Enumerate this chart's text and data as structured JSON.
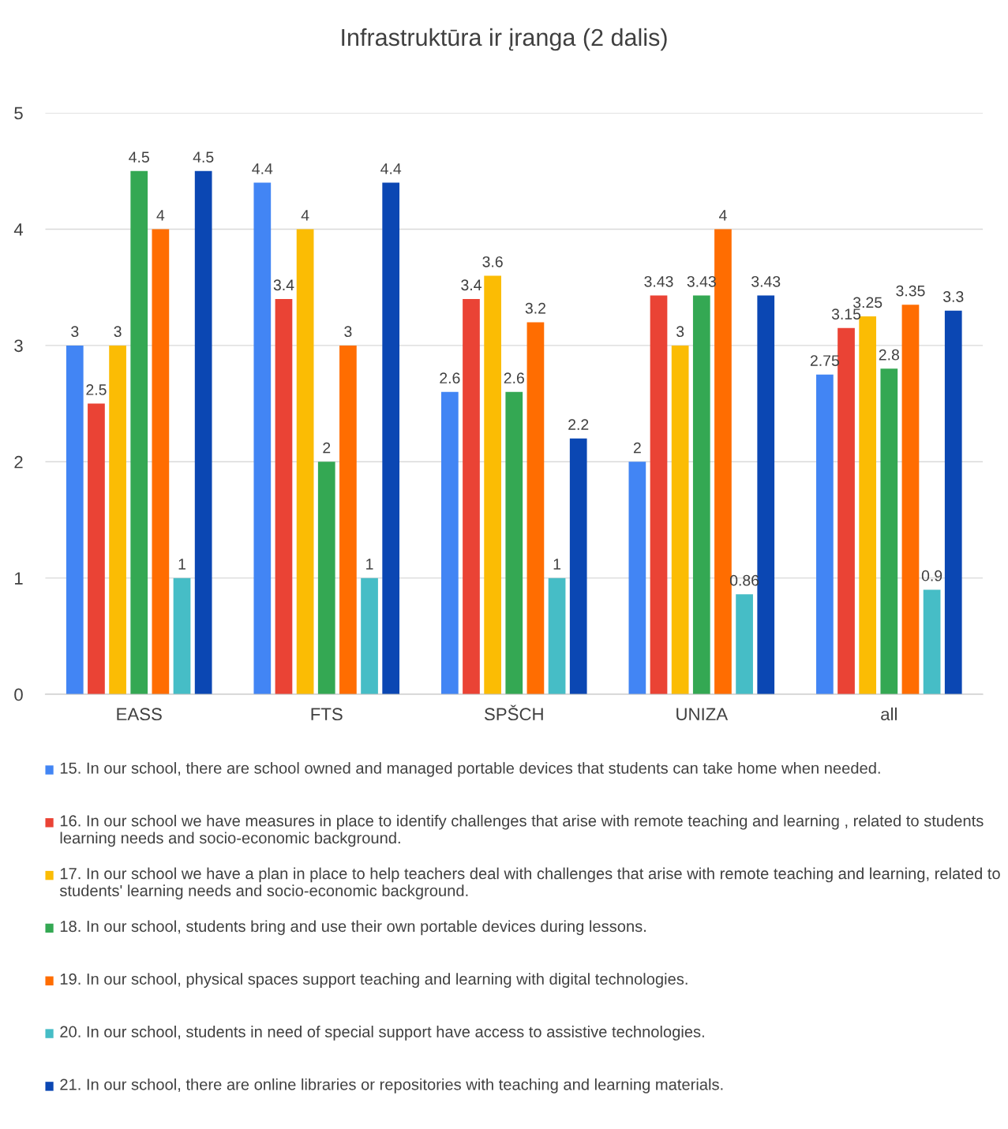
{
  "chart_data": {
    "type": "bar",
    "title": "Infrastruktūra ir įranga (2 dalis)",
    "categories": [
      "EASS",
      "FTS",
      "SPŠCH",
      "UNIZA",
      "all"
    ],
    "series": [
      {
        "name": "15. In our school, there are school owned and managed portable devices that students can take home when needed.",
        "color": "#4285f4",
        "values": [
          3,
          4.4,
          2.6,
          2,
          2.75
        ]
      },
      {
        "name": "16. In our school we have measures in place to identify challenges that arise with remote teaching and learning , related to students learning needs and socio-economic background.",
        "color": "#ea4335",
        "values": [
          2.5,
          3.4,
          3.4,
          3.43,
          3.15
        ]
      },
      {
        "name": "17. In our school we have a plan in place to help teachers deal with challenges that arise with remote teaching and learning, related to students' learning needs and socio-economic background.",
        "color": "#fbbc04",
        "values": [
          3,
          4,
          3.6,
          3,
          3.25
        ]
      },
      {
        "name": "18. In our school, students bring and use their own portable devices during lessons.",
        "color": "#34a853",
        "values": [
          4.5,
          2,
          2.6,
          3.43,
          2.8
        ]
      },
      {
        "name": "19. In our school, physical spaces support teaching and learning with digital technologies.",
        "color": "#ff6d01",
        "values": [
          4,
          3,
          3.2,
          4,
          3.35
        ]
      },
      {
        "name": "20. In our school, students in need of special support have access to assistive technologies.",
        "color": "#46bdc6",
        "values": [
          1,
          1,
          1,
          0.86,
          0.9
        ]
      },
      {
        "name": "21. In our school, there are online libraries or repositories with teaching and learning materials.",
        "color": "#0b47b3",
        "values": [
          4.5,
          4.4,
          2.2,
          3.43,
          3.3
        ]
      }
    ],
    "ylim": [
      0,
      5
    ],
    "yticks": [
      0,
      1,
      2,
      3,
      4,
      5
    ],
    "grid": "y",
    "legend": "bottom",
    "data_labels": true
  }
}
